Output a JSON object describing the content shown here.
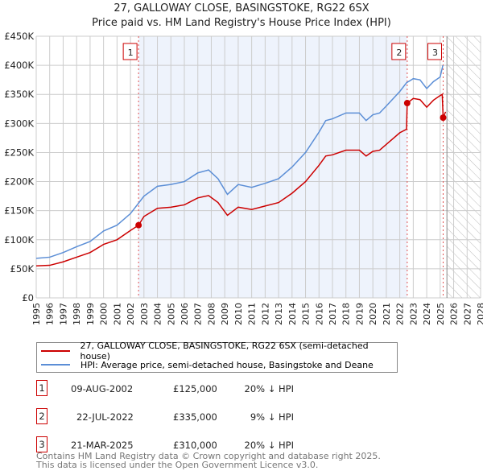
{
  "chart_data": {
    "type": "line",
    "title": "27, GALLOWAY CLOSE, BASINGSTOKE, RG22 6SX",
    "subtitle": "Price paid vs. HM Land Registry's House Price Index (HPI)",
    "xlim": [
      1995,
      2028
    ],
    "ylim": [
      0,
      450000
    ],
    "yticks": [
      "£0",
      "£50K",
      "£100K",
      "£150K",
      "£200K",
      "£250K",
      "£300K",
      "£350K",
      "£400K",
      "£450K"
    ],
    "xticks": [
      "1995",
      "1996",
      "1997",
      "1998",
      "1999",
      "2000",
      "2001",
      "2002",
      "2003",
      "2004",
      "2005",
      "2006",
      "2007",
      "2008",
      "2009",
      "2010",
      "2011",
      "2012",
      "2013",
      "2014",
      "2015",
      "2016",
      "2017",
      "2018",
      "2019",
      "2020",
      "2021",
      "2022",
      "2023",
      "2024",
      "2025",
      "2026",
      "2027",
      "2028"
    ],
    "grid": true,
    "series": [
      {
        "name": "27, GALLOWAY CLOSE, BASINGSTOKE, RG22 6SX (semi-detached house)",
        "color": "#cc0000",
        "x": [
          1995,
          1996,
          1997,
          1998,
          1999,
          2000,
          2001,
          2002,
          2002.6,
          2003,
          2004,
          2005,
          2006,
          2007,
          2007.8,
          2008.5,
          2009.2,
          2010,
          2011,
          2012,
          2013,
          2014,
          2015,
          2016,
          2016.5,
          2017,
          2018,
          2019,
          2019.5,
          2020,
          2020.5,
          2021,
          2022,
          2022.5,
          2022.55,
          2023,
          2023.5,
          2024,
          2024.5,
          2025,
          2025.15,
          2025.22,
          2025.4
        ],
        "y": [
          55000,
          56000,
          62000,
          70000,
          78000,
          92000,
          100000,
          116000,
          125000,
          140000,
          154000,
          156000,
          160000,
          172000,
          176000,
          164000,
          142000,
          156000,
          152000,
          158000,
          164000,
          180000,
          200000,
          228000,
          244000,
          246000,
          254000,
          254000,
          244000,
          252000,
          254000,
          264000,
          284000,
          290000,
          335000,
          343000,
          341000,
          328000,
          340000,
          348000,
          350000,
          310000,
          320000
        ]
      },
      {
        "name": "HPI: Average price, semi-detached house, Basingstoke and Deane",
        "color": "#5b8ed6",
        "x": [
          1995,
          1996,
          1997,
          1998,
          1999,
          2000,
          2001,
          2002,
          2003,
          2004,
          2005,
          2006,
          2007,
          2007.8,
          2008.5,
          2009.2,
          2010,
          2011,
          2012,
          2013,
          2014,
          2015,
          2016,
          2016.5,
          2017,
          2018,
          2019,
          2019.5,
          2020,
          2020.5,
          2021,
          2022,
          2022.5,
          2023,
          2023.5,
          2024,
          2024.5,
          2025,
          2025.2
        ],
        "y": [
          68000,
          70000,
          78000,
          88000,
          97000,
          115000,
          125000,
          145000,
          175000,
          192000,
          195000,
          200000,
          215000,
          220000,
          205000,
          178000,
          195000,
          190000,
          197000,
          205000,
          225000,
          250000,
          285000,
          305000,
          308000,
          318000,
          318000,
          305000,
          315000,
          318000,
          330000,
          355000,
          370000,
          377000,
          375000,
          360000,
          372000,
          380000,
          400000
        ]
      }
    ],
    "sales": [
      {
        "label": "1",
        "x": 2002.6,
        "y": 125000,
        "date": "09-AUG-2002",
        "price": "£125,000",
        "hpi": "20% ↓ HPI"
      },
      {
        "label": "2",
        "x": 2022.55,
        "y": 335000,
        "date": "22-JUL-2022",
        "price": "£335,000",
        "hpi": "9% ↓ HPI"
      },
      {
        "label": "3",
        "x": 2025.22,
        "y": 310000,
        "date": "21-MAR-2025",
        "price": "£310,000",
        "hpi": "20% ↓ HPI"
      }
    ],
    "shaded_range": [
      2002.6,
      2022.55
    ],
    "forecast_from": 2025.5
  },
  "footer": {
    "line1": "Contains HM Land Registry data © Crown copyright and database right 2025.",
    "line2": "This data is licensed under the Open Government Licence v3.0."
  }
}
